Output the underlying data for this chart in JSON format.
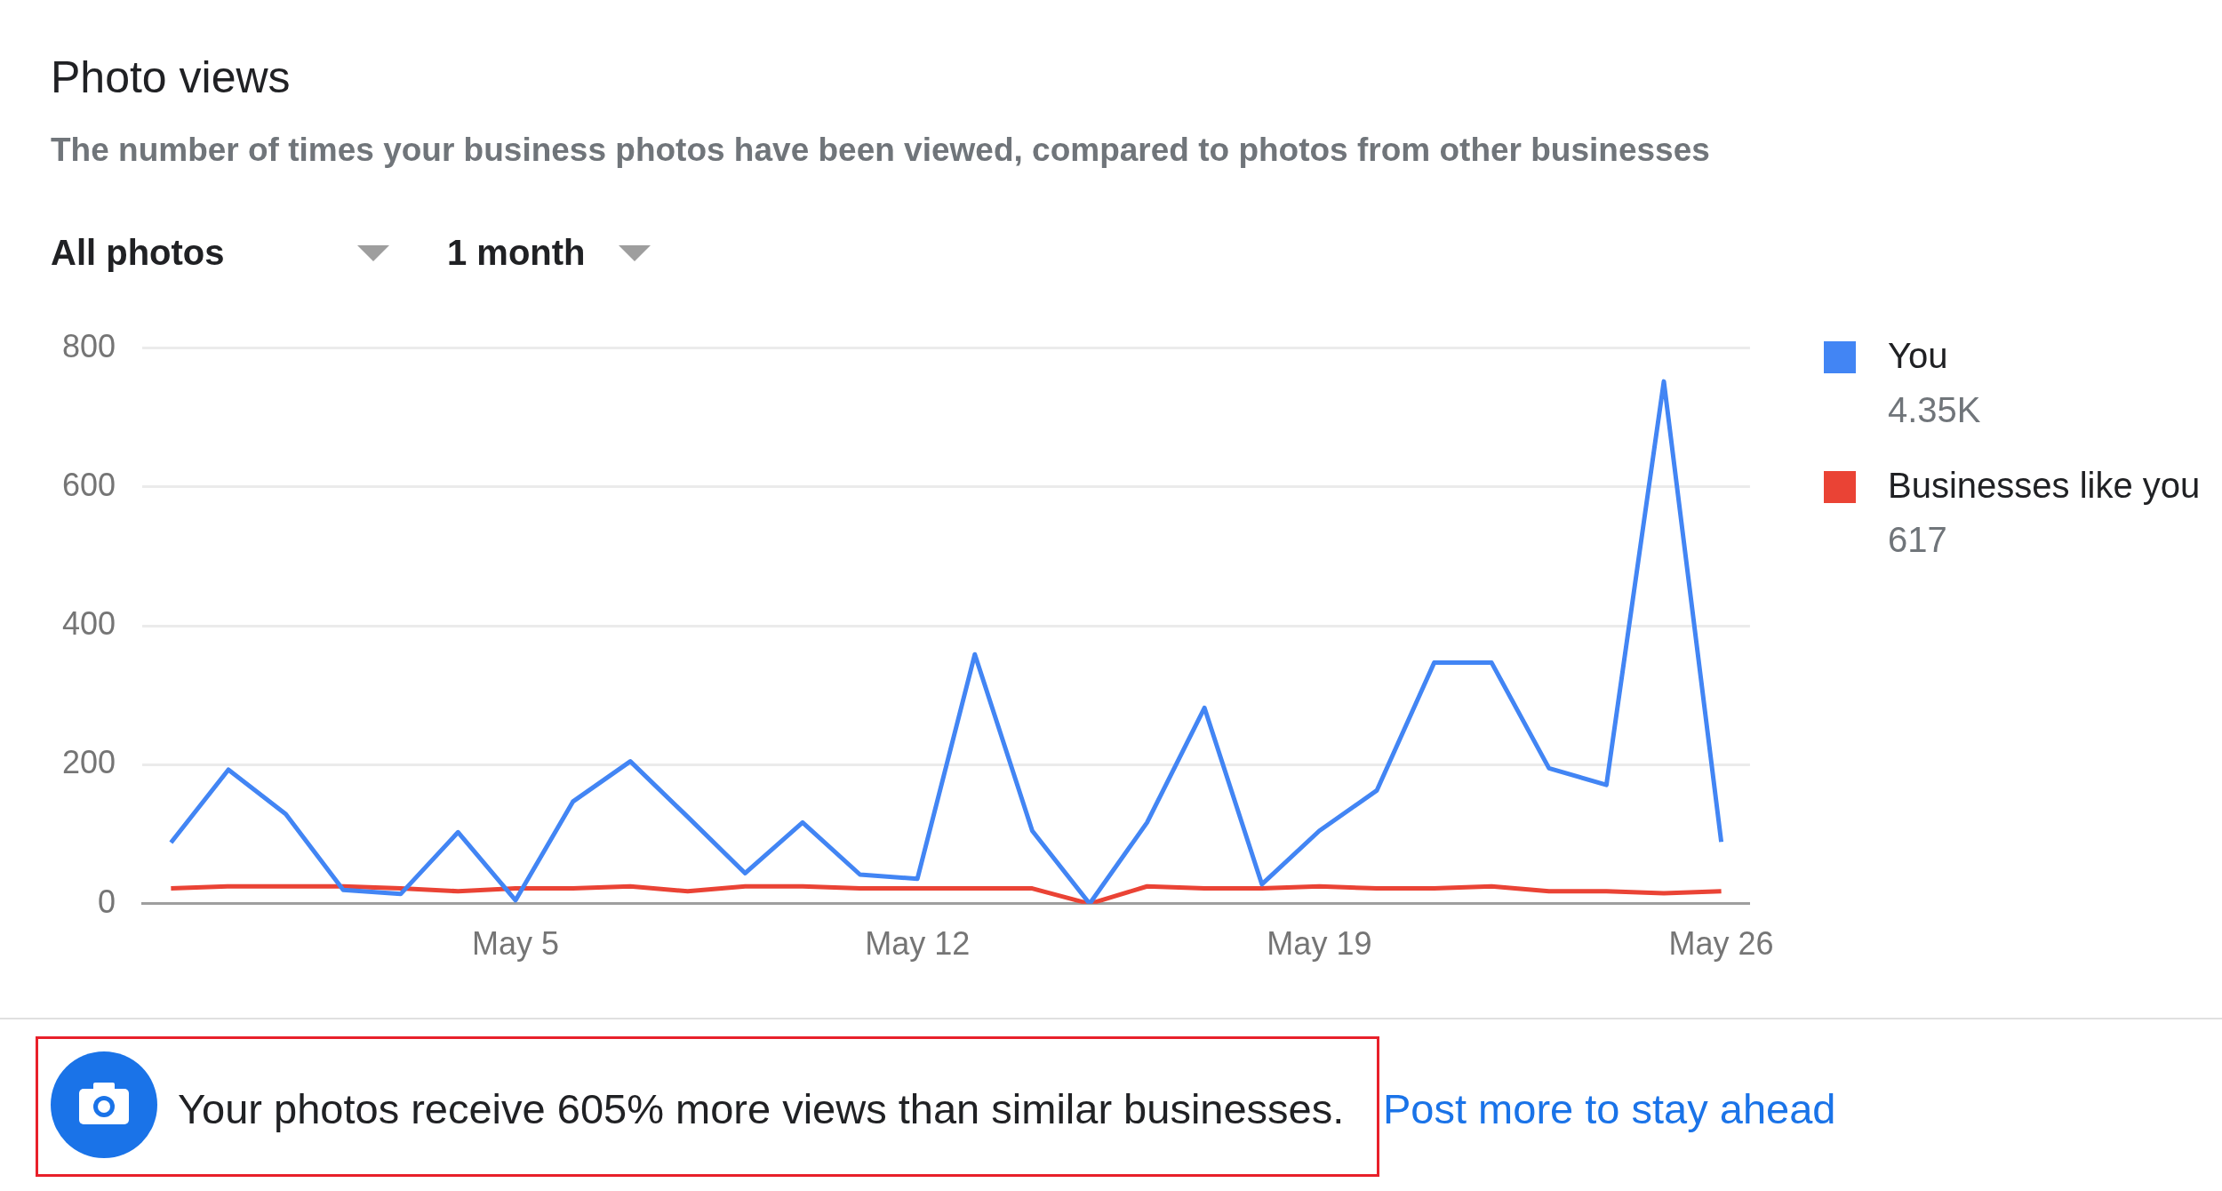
{
  "chart_data": {
    "type": "line",
    "title": "Photo views",
    "subtitle": "The number of times your business photos have been viewed, compared to photos from other businesses",
    "categories": [
      null,
      null,
      null,
      null,
      null,
      null,
      "May 5",
      null,
      null,
      null,
      null,
      null,
      null,
      "May 12",
      null,
      null,
      null,
      null,
      null,
      null,
      "May 19",
      null,
      null,
      null,
      null,
      null,
      null,
      "May 26"
    ],
    "series": [
      {
        "name": "You",
        "color": "#4285f4",
        "values": [
          88,
          193,
          129,
          20,
          14,
          103,
          5,
          147,
          205,
          125,
          44,
          117,
          42,
          36,
          359,
          105,
          0,
          117,
          282,
          28,
          105,
          163,
          347,
          347,
          195,
          171,
          752,
          89
        ]
      },
      {
        "name": "Businesses like you",
        "color": "#ea4335",
        "values": [
          22,
          25,
          25,
          25,
          22,
          18,
          22,
          22,
          25,
          18,
          25,
          25,
          22,
          22,
          22,
          22,
          0,
          25,
          22,
          22,
          25,
          22,
          22,
          25,
          18,
          18,
          15,
          18
        ]
      }
    ],
    "ylim": [
      0,
      800
    ],
    "yticks": [
      0,
      200,
      400,
      600,
      800
    ],
    "grid": "y",
    "legend": "right",
    "marker": "none",
    "line_style": "solid",
    "annotations": [
      "All photos",
      "1 month",
      "4.35K",
      "617",
      "Your photos receive 605% more views than similar businesses.",
      "Post more to stay ahead"
    ]
  }
}
